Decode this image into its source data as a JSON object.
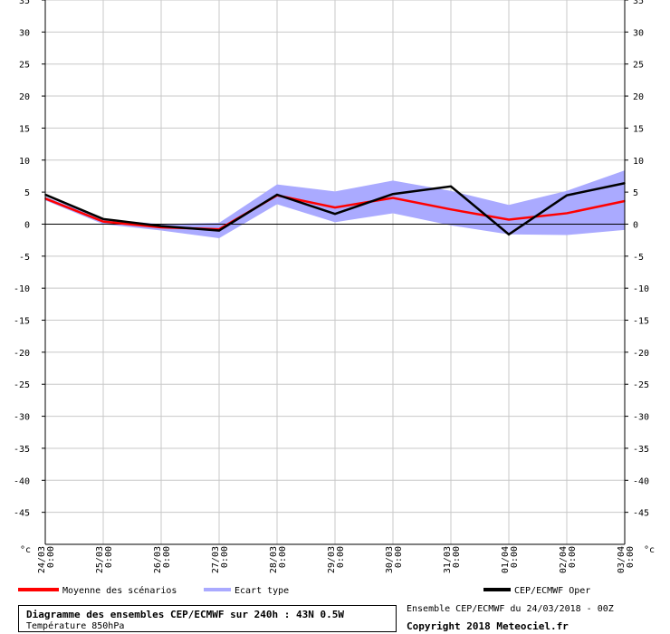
{
  "chart_data": {
    "type": "line",
    "title": "Diagramme des ensembles CEP/ECMWF sur 240h : 43N 0.5W",
    "subtitle": "Température 850hPa",
    "ylabel": "°c",
    "ylim": [
      -50,
      35
    ],
    "yticks": [
      35,
      30,
      25,
      20,
      15,
      10,
      5,
      0,
      -5,
      -10,
      -15,
      -20,
      -25,
      -30,
      -35,
      -40,
      -45
    ],
    "grid": true,
    "categories": [
      "24/03 0:00",
      "25/03 0:00",
      "26/03 0:00",
      "27/03 0:00",
      "28/03 0:00",
      "29/03 0:00",
      "30/03 0:00",
      "31/03 0:00",
      "01/04 0:00",
      "02/04 0:00",
      "03/04 0:00"
    ],
    "x_date_labels": [
      "24/03",
      "25/03",
      "26/03",
      "27/03",
      "28/03",
      "29/03",
      "30/03",
      "31/03",
      "01/04",
      "02/04",
      "03/04"
    ],
    "x_time_labels": [
      "0:00",
      "0:00",
      "0:00",
      "0:00",
      "0:00",
      "0:00",
      "0:00",
      "0:00",
      "0:00",
      "0:00",
      "0:00"
    ],
    "series": [
      {
        "name": "Moyenne des scénarios",
        "color": "#ff0000",
        "values": [
          4.0,
          0.4,
          -0.5,
          -0.8,
          4.5,
          2.6,
          4.1,
          2.3,
          0.7,
          1.7,
          3.6
        ]
      },
      {
        "name": "Ecart type",
        "color": "#aaaaff",
        "kind": "band",
        "upper": [
          4.3,
          0.8,
          0.0,
          0.2,
          6.2,
          5.1,
          6.8,
          5.2,
          3.0,
          5.2,
          8.4
        ],
        "lower": [
          3.7,
          0.0,
          -1.0,
          -2.2,
          3.1,
          0.3,
          1.7,
          -0.2,
          -1.6,
          -1.7,
          -0.9
        ]
      },
      {
        "name": "CEP/ECMWF Oper",
        "color": "#000000",
        "values": [
          4.6,
          0.8,
          -0.3,
          -1.0,
          4.6,
          1.6,
          4.7,
          5.9,
          -1.6,
          4.5,
          6.4
        ]
      }
    ],
    "legend_position": "bottom"
  },
  "footer": {
    "title": "Diagramme des ensembles CEP/ECMWF sur 240h : 43N 0.5W",
    "subtitle": "Température 850hPa",
    "run_info": "Ensemble CEP/ECMWF du 24/03/2018 - 00Z",
    "copyright": "Copyright 2018 Meteociel.fr"
  },
  "legend": {
    "mean": "Moyenne des scénarios",
    "spread": "Ecart type",
    "oper": "CEP/ECMWF Oper"
  }
}
